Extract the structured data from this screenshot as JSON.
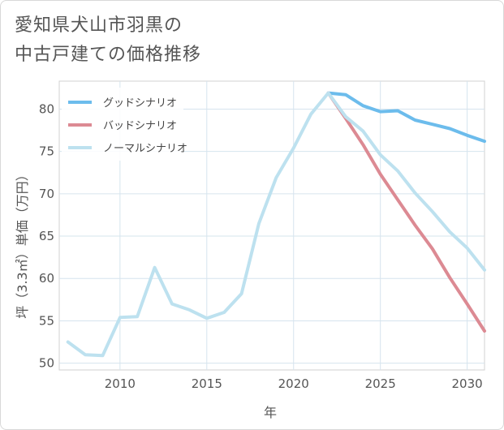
{
  "title_lines": [
    "愛知県犬山市羽黒の",
    "中古戸建ての価格推移"
  ],
  "chart_data": {
    "type": "line",
    "title": "愛知県犬山市羽黒の中古戸建ての価格推移",
    "xlabel": "年",
    "ylabel": "坪（3.3㎡）単価（万円）",
    "xlim": [
      2006.5,
      2031
    ],
    "ylim": [
      49.2,
      83.3
    ],
    "x_ticks": [
      2010,
      2015,
      2020,
      2025,
      2030
    ],
    "y_ticks": [
      50,
      55,
      60,
      65,
      70,
      75,
      80
    ],
    "grid": true,
    "legend_position": "top-left",
    "series": [
      {
        "name": "グッドシナリオ",
        "color": "#6cbcec",
        "x": [
          2022,
          2023,
          2024,
          2025,
          2026,
          2027,
          2028,
          2029,
          2030,
          2031
        ],
        "y": [
          81.9,
          81.7,
          80.4,
          79.7,
          79.8,
          78.7,
          78.2,
          77.7,
          76.9,
          76.2
        ]
      },
      {
        "name": "バッドシナリオ",
        "color": "#dc8a93",
        "x": [
          2022,
          2023,
          2024,
          2025,
          2026,
          2027,
          2028,
          2029,
          2030,
          2031
        ],
        "y": [
          81.9,
          78.9,
          75.8,
          72.3,
          69.3,
          66.3,
          63.5,
          60.1,
          57.0,
          53.8
        ]
      },
      {
        "name": "ノーマルシナリオ",
        "color": "#bde1ef",
        "x": [
          2007,
          2008,
          2009,
          2010,
          2011,
          2012,
          2013,
          2014,
          2015,
          2016,
          2017,
          2018,
          2019,
          2020,
          2021,
          2022,
          2023,
          2024,
          2025,
          2026,
          2027,
          2028,
          2029,
          2030,
          2031
        ],
        "y": [
          52.5,
          51.0,
          50.9,
          55.4,
          55.5,
          61.3,
          57.0,
          56.3,
          55.3,
          56.0,
          58.2,
          66.5,
          71.9,
          75.4,
          79.4,
          81.9,
          79.1,
          77.4,
          74.6,
          72.7,
          70.1,
          67.9,
          65.5,
          63.6,
          61.0
        ]
      }
    ]
  }
}
